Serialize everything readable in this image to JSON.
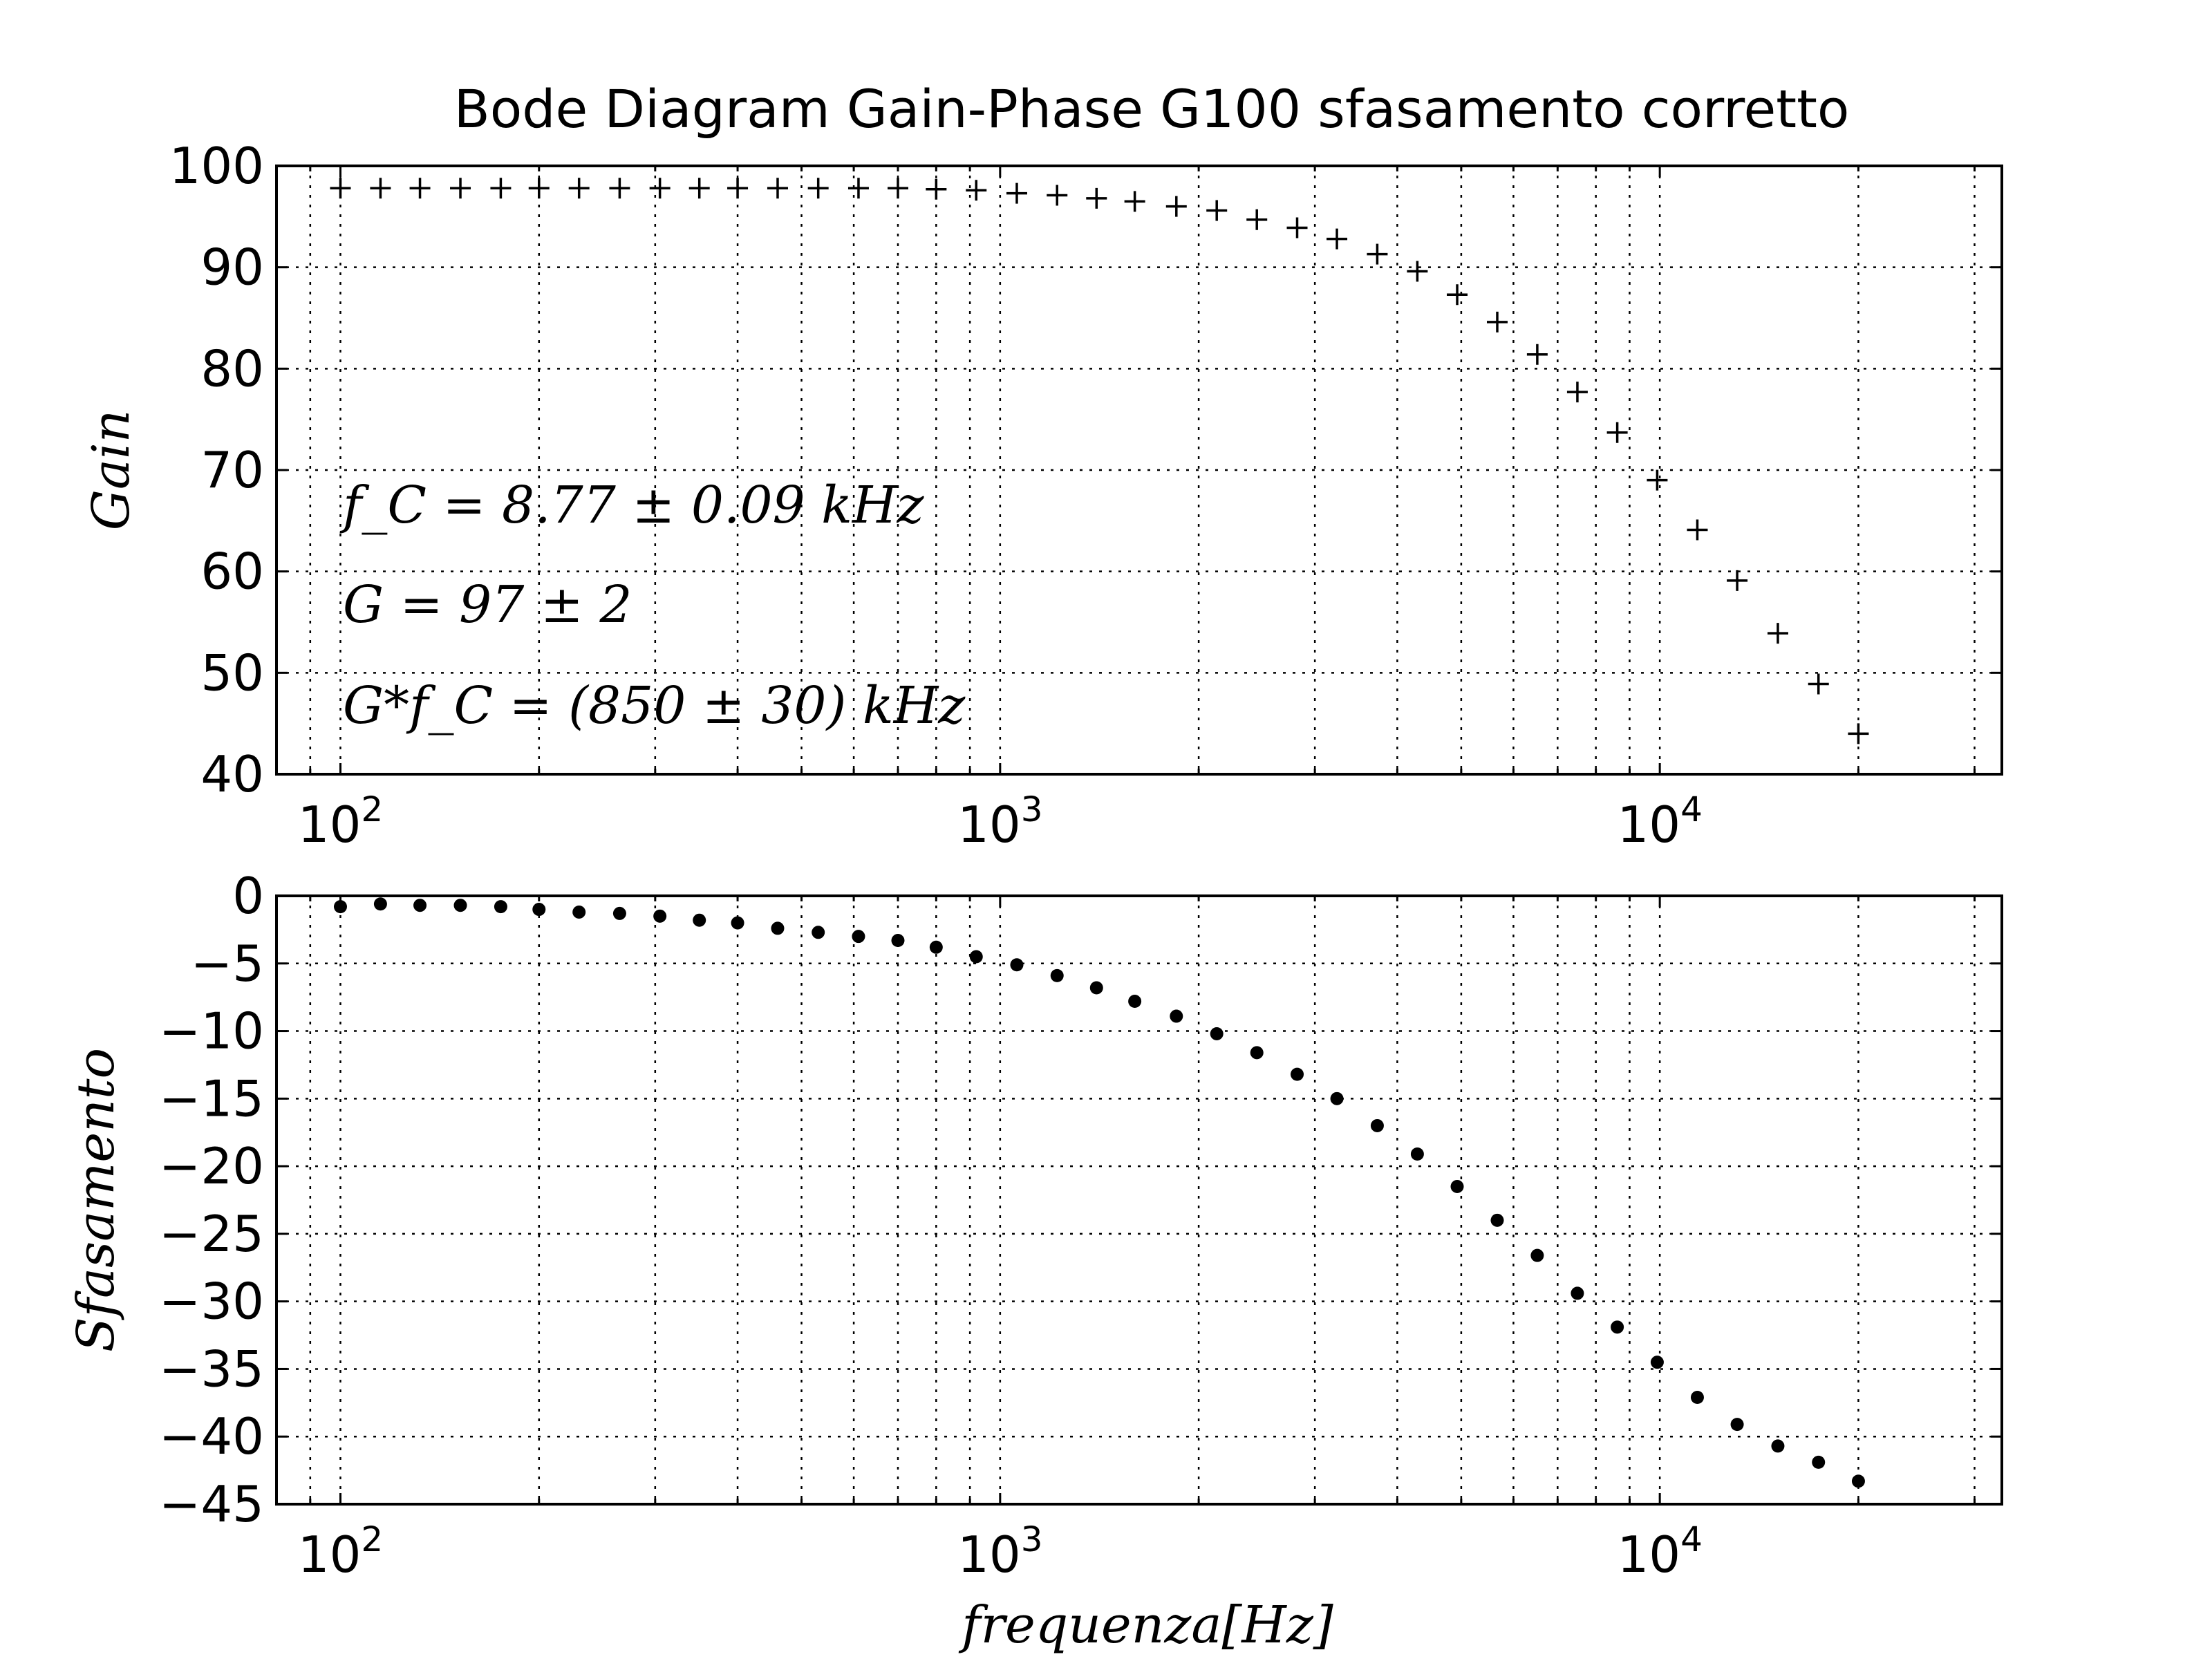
{
  "chart_data": [
    {
      "type": "scatter",
      "title": "Bode Diagram Gain-Phase G100 sfasamento corretto",
      "ylabel": "Gain",
      "xlabel": "",
      "xscale": "log",
      "xlim": [
        80,
        33000
      ],
      "ylim": [
        40,
        100
      ],
      "grid": true,
      "marker": "plus",
      "yticks": [
        "40",
        "50",
        "60",
        "70",
        "80",
        "90",
        "100"
      ],
      "xticks": [
        {
          "base": "10",
          "exp": "2",
          "value": 100
        },
        {
          "base": "10",
          "exp": "3",
          "value": 1000
        },
        {
          "base": "10",
          "exp": "4",
          "value": 10000
        }
      ],
      "annotations": [
        "f_C = 8.77 ± 0.09 kHz",
        "G = 97 ± 2",
        "G*f_C = (850 ± 30) kHz"
      ],
      "x": [
        100,
        115,
        132,
        152,
        175,
        200,
        230,
        265,
        305,
        350,
        400,
        460,
        530,
        610,
        700,
        800,
        920,
        1060,
        1220,
        1400,
        1600,
        1850,
        2130,
        2450,
        2820,
        3240,
        3730,
        4290,
        4930,
        5670,
        6520,
        7500,
        8620,
        9910,
        11400,
        13100,
        15100,
        17400,
        20000
      ],
      "y": [
        97.8,
        97.8,
        97.8,
        97.8,
        97.8,
        97.8,
        97.8,
        97.8,
        97.8,
        97.8,
        97.8,
        97.8,
        97.8,
        97.8,
        97.8,
        97.7,
        97.6,
        97.3,
        97.1,
        96.8,
        96.5,
        96.0,
        95.6,
        94.7,
        93.9,
        92.8,
        91.3,
        89.6,
        87.3,
        84.6,
        81.4,
        77.7,
        73.7,
        69.0,
        64.1,
        59.1,
        53.9,
        48.9,
        44.0
      ]
    },
    {
      "type": "scatter",
      "title": "",
      "ylabel": "Sfasamento",
      "xlabel": "frequenza[Hz]",
      "xscale": "log",
      "xlim": [
        80,
        33000
      ],
      "ylim": [
        -45,
        0
      ],
      "grid": true,
      "marker": "dot",
      "yticks": [
        "0",
        "−5",
        "−10",
        "−15",
        "−20",
        "−25",
        "−30",
        "−35",
        "−40",
        "−45"
      ],
      "xticks": [
        {
          "base": "10",
          "exp": "2",
          "value": 100
        },
        {
          "base": "10",
          "exp": "3",
          "value": 1000
        },
        {
          "base": "10",
          "exp": "4",
          "value": 10000
        }
      ],
      "x": [
        100,
        115,
        132,
        152,
        175,
        200,
        230,
        265,
        305,
        350,
        400,
        460,
        530,
        610,
        700,
        800,
        920,
        1060,
        1220,
        1400,
        1600,
        1850,
        2130,
        2450,
        2820,
        3240,
        3730,
        4290,
        4930,
        5670,
        6520,
        7500,
        8620,
        9910,
        11400,
        13100,
        15100,
        17400,
        20000
      ],
      "y": [
        -0.8,
        -0.6,
        -0.7,
        -0.7,
        -0.8,
        -1.0,
        -1.2,
        -1.3,
        -1.5,
        -1.8,
        -2.0,
        -2.4,
        -2.7,
        -3.0,
        -3.3,
        -3.8,
        -4.5,
        -5.1,
        -5.9,
        -6.8,
        -7.8,
        -8.9,
        -10.2,
        -11.6,
        -13.2,
        -15.0,
        -17.0,
        -19.1,
        -21.5,
        -24.0,
        -26.6,
        -29.4,
        -31.9,
        -34.5,
        -37.1,
        -39.1,
        -40.7,
        -41.9,
        -43.3
      ]
    }
  ]
}
